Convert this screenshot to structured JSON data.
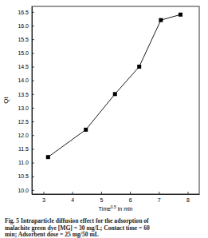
{
  "chart_data": {
    "type": "line",
    "x_label": "Time0.5 in min",
    "y_label": "Qt",
    "caption": [
      "Fig. 5 Intraparticle diffusion effect for the adsorption of",
      "malachite green dye [MG] = 30 mg/L; Contact time = 60",
      "min; Adsorbent dose = 25 mg/50 mL"
    ],
    "x": [
      3.16,
      4.47,
      5.48,
      6.32,
      7.07,
      7.75
    ],
    "series": [
      {
        "color": "#000000",
        "marker": "square",
        "line_style": "solid",
        "values": [
          11.2,
          12.2,
          13.5,
          14.5,
          16.2,
          16.4
        ]
      }
    ],
    "xlim": [
      2.6,
      8.4
    ],
    "xticks": [
      3,
      4,
      5,
      6,
      7,
      8
    ],
    "ylim": [
      9.85,
      16.7
    ],
    "yticks": [
      {
        "value": 10,
        "label": "10.0"
      },
      10.5,
      {
        "value": 11,
        "label": "11.0"
      },
      11.5,
      {
        "value": 12,
        "label": "12.0"
      },
      12.5,
      {
        "value": 13,
        "label": "13.0"
      },
      13.5,
      {
        "value": 14,
        "label": "14.0"
      },
      14.5,
      {
        "value": 15,
        "label": "15.0"
      },
      15.5,
      {
        "value": 16,
        "label": "16.0"
      },
      16.5
    ],
    "grid": false
  }
}
